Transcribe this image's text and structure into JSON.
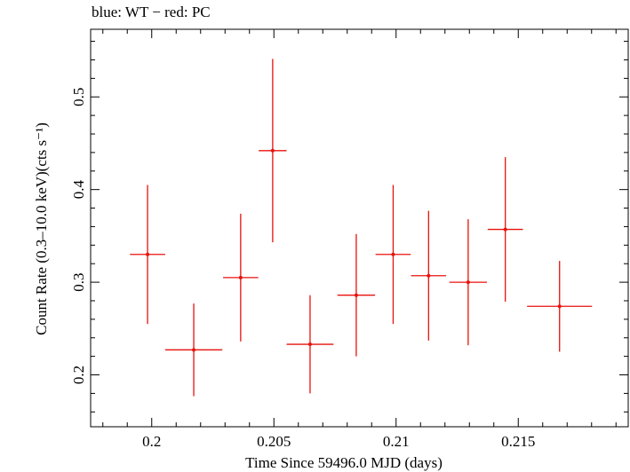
{
  "chart_data": {
    "type": "scatter",
    "title": "blue: WT − red: PC",
    "xlabel": "Time Since 59496.0 MJD (days)",
    "ylabel": "Count Rate (0.3–10.0 keV)(cts s⁻¹)",
    "xlim": [
      0.1975,
      0.2195
    ],
    "ylim": [
      0.144,
      0.573
    ],
    "x_ticks": [
      0.2,
      0.205,
      0.21,
      0.215
    ],
    "x_tick_labels": [
      "0.2",
      "0.205",
      "0.21",
      "0.215"
    ],
    "y_ticks": [
      0.2,
      0.3,
      0.4,
      0.5
    ],
    "y_tick_labels": [
      "0.2",
      "0.3",
      "0.4",
      "0.5"
    ],
    "grid": false,
    "series": [
      {
        "name": "PC",
        "color": "#e8120c",
        "points": [
          {
            "x": 0.19983,
            "xerr": 0.00072,
            "y": 0.33,
            "yerr_lo": 0.075,
            "yerr_hi": 0.075
          },
          {
            "x": 0.20172,
            "xerr": 0.00117,
            "y": 0.227,
            "yerr_lo": 0.05,
            "yerr_hi": 0.05
          },
          {
            "x": 0.20364,
            "xerr": 0.00072,
            "y": 0.305,
            "yerr_lo": 0.069,
            "yerr_hi": 0.069
          },
          {
            "x": 0.20495,
            "xerr": 0.00057,
            "y": 0.442,
            "yerr_lo": 0.099,
            "yerr_hi": 0.099
          },
          {
            "x": 0.20648,
            "xerr": 0.00096,
            "y": 0.233,
            "yerr_lo": 0.053,
            "yerr_hi": 0.053
          },
          {
            "x": 0.20837,
            "xerr": 0.00077,
            "y": 0.286,
            "yerr_lo": 0.066,
            "yerr_hi": 0.066
          },
          {
            "x": 0.20988,
            "xerr": 0.00072,
            "y": 0.33,
            "yerr_lo": 0.075,
            "yerr_hi": 0.075
          },
          {
            "x": 0.21133,
            "xerr": 0.00072,
            "y": 0.307,
            "yerr_lo": 0.07,
            "yerr_hi": 0.07
          },
          {
            "x": 0.21295,
            "xerr": 0.00077,
            "y": 0.3,
            "yerr_lo": 0.068,
            "yerr_hi": 0.068
          },
          {
            "x": 0.21447,
            "xerr": 0.00072,
            "y": 0.357,
            "yerr_lo": 0.078,
            "yerr_hi": 0.078
          },
          {
            "x": 0.21669,
            "xerr": 0.00133,
            "y": 0.274,
            "yerr_lo": 0.049,
            "yerr_hi": 0.049
          }
        ]
      }
    ]
  }
}
